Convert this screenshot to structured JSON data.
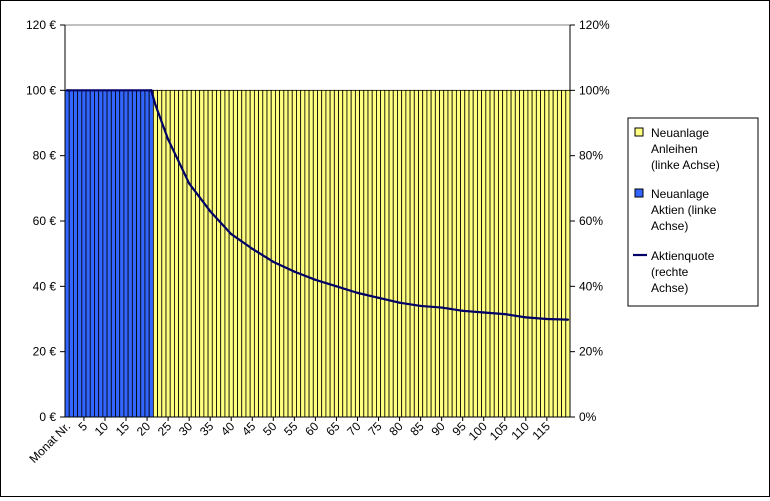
{
  "chart_data": {
    "type": "bar",
    "stacked": true,
    "x_first_label": "Monat Nr.",
    "x_tick_labels": [
      "5",
      "10",
      "15",
      "20",
      "25",
      "30",
      "35",
      "40",
      "45",
      "50",
      "55",
      "60",
      "65",
      "70",
      "75",
      "80",
      "85",
      "90",
      "95",
      "100",
      "105",
      "110",
      "115"
    ],
    "x_tick_step": 5,
    "n_months": 120,
    "left_axis": {
      "ylim": [
        0,
        120
      ],
      "ticks": [
        "0 €",
        "20 €",
        "40 €",
        "60 €",
        "80 €",
        "100 €",
        "120 €"
      ]
    },
    "right_axis": {
      "ylim": [
        0,
        120
      ],
      "ticks": [
        "0%",
        "20%",
        "40%",
        "60%",
        "80%",
        "100%",
        "120%"
      ]
    },
    "grid": false,
    "legend": {
      "position": "right"
    },
    "colors": {
      "anleihen": "#ffff80",
      "aktien": "#3366ff",
      "bar_edge": "#000000",
      "line": "#000066",
      "plot_bg": "#ffffff"
    },
    "series": [
      {
        "name": "Neuanlage Anleihen (linke Achse)",
        "legend_lines": [
          "Neuanlage",
          "Anleihen",
          "(linke Achse)"
        ],
        "kind": "bar",
        "axis": "left",
        "values_by_range": [
          {
            "from_month": 1,
            "to_month": 21,
            "value": 0
          },
          {
            "from_month": 22,
            "to_month": 120,
            "value": 100
          }
        ]
      },
      {
        "name": "Neuanlage Aktien (linke Achse)",
        "legend_lines": [
          "Neuanlage",
          "Aktien (linke",
          "Achse)"
        ],
        "kind": "bar",
        "axis": "left",
        "values_by_range": [
          {
            "from_month": 1,
            "to_month": 21,
            "value": 100
          },
          {
            "from_month": 22,
            "to_month": 120,
            "value": 0
          }
        ]
      },
      {
        "name": "Aktienquote (rechte Achse)",
        "legend_lines": [
          "Aktienquote",
          "(rechte",
          "Achse)"
        ],
        "kind": "line",
        "axis": "right",
        "x": [
          1,
          21,
          22,
          25,
          30,
          35,
          40,
          45,
          50,
          55,
          60,
          65,
          70,
          75,
          80,
          85,
          90,
          95,
          100,
          105,
          110,
          115,
          120
        ],
        "y": [
          100,
          100,
          95.5,
          85,
          71.5,
          63,
          56,
          51.5,
          47.5,
          44.5,
          42,
          40,
          38,
          36.5,
          35,
          34,
          33.5,
          32.5,
          32,
          31.5,
          30.5,
          30,
          29.8
        ]
      }
    ]
  }
}
